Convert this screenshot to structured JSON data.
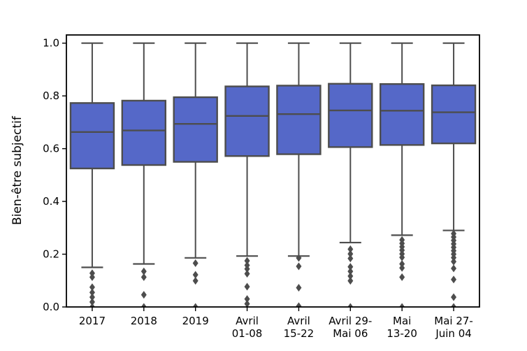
{
  "figure": {
    "ylabel": "Bien-être subjectif"
  },
  "chart_data": {
    "type": "boxplot",
    "title": "",
    "xlabel": "",
    "ylabel": "Bien-être subjectif",
    "ylim": [
      0.0,
      1.031
    ],
    "yticks": [
      0.0,
      0.2,
      0.4,
      0.6,
      0.8,
      1.0
    ],
    "ytick_labels": [
      "0.0",
      "0.2",
      "0.4",
      "0.6",
      "0.8",
      "1.0"
    ],
    "grid": false,
    "legend": null,
    "marker": "diamond",
    "categories": [
      [
        "2017"
      ],
      [
        "2018"
      ],
      [
        "2019"
      ],
      [
        "Avril",
        "01-08"
      ],
      [
        "Avril",
        "15-22"
      ],
      [
        "Avril 29-",
        "Mai 06"
      ],
      [
        "Mai",
        "13-20"
      ],
      [
        "Mai 27-",
        "Juin 04"
      ]
    ],
    "boxes": [
      {
        "label": "2017",
        "whislo": 0.15,
        "q1": 0.525,
        "med": 0.663,
        "q3": 0.773,
        "whishi": 1.0,
        "fliers": [
          0.128,
          0.113,
          0.075,
          0.055,
          0.037,
          0.019,
          0.0
        ]
      },
      {
        "label": "2018",
        "whislo": 0.163,
        "q1": 0.538,
        "med": 0.669,
        "q3": 0.782,
        "whishi": 1.0,
        "fliers": [
          0.135,
          0.113,
          0.046,
          0.0
        ]
      },
      {
        "label": "2019",
        "whislo": 0.186,
        "q1": 0.55,
        "med": 0.694,
        "q3": 0.795,
        "whishi": 1.0,
        "fliers": [
          0.166,
          0.122,
          0.099,
          0.0
        ]
      },
      {
        "label": "Avril 01-08",
        "whislo": 0.193,
        "q1": 0.572,
        "med": 0.724,
        "q3": 0.836,
        "whishi": 1.0,
        "fliers": [
          0.175,
          0.158,
          0.144,
          0.126,
          0.077,
          0.03,
          0.012
        ]
      },
      {
        "label": "Avril 15-22",
        "whislo": 0.193,
        "q1": 0.579,
        "med": 0.731,
        "q3": 0.839,
        "whishi": 1.0,
        "fliers": [
          0.186,
          0.154,
          0.073,
          0.003
        ]
      },
      {
        "label": "Avril 29-Mai 06",
        "whislo": 0.244,
        "q1": 0.606,
        "med": 0.745,
        "q3": 0.846,
        "whishi": 1.0,
        "fliers": [
          0.219,
          0.201,
          0.184,
          0.152,
          0.135,
          0.117,
          0.099,
          0.0
        ]
      },
      {
        "label": "Mai 13-20",
        "whislo": 0.272,
        "q1": 0.614,
        "med": 0.744,
        "q3": 0.845,
        "whishi": 1.0,
        "fliers": [
          0.254,
          0.241,
          0.228,
          0.215,
          0.201,
          0.188,
          0.163,
          0.148,
          0.113,
          0.0
        ]
      },
      {
        "label": "Mai 27-Juin 04",
        "whislo": 0.29,
        "q1": 0.62,
        "med": 0.738,
        "q3": 0.84,
        "whishi": 1.0,
        "fliers": [
          0.278,
          0.265,
          0.252,
          0.239,
          0.226,
          0.213,
          0.2,
          0.187,
          0.172,
          0.146,
          0.104,
          0.037,
          0.0
        ]
      }
    ],
    "colors": {
      "box_fill": "#5568c8",
      "box_edge": "#4d4d4d",
      "whisker": "#4d4d4d",
      "median": "#4d4d4d",
      "flier": "#4d4d4d",
      "spine": "#000000"
    }
  }
}
